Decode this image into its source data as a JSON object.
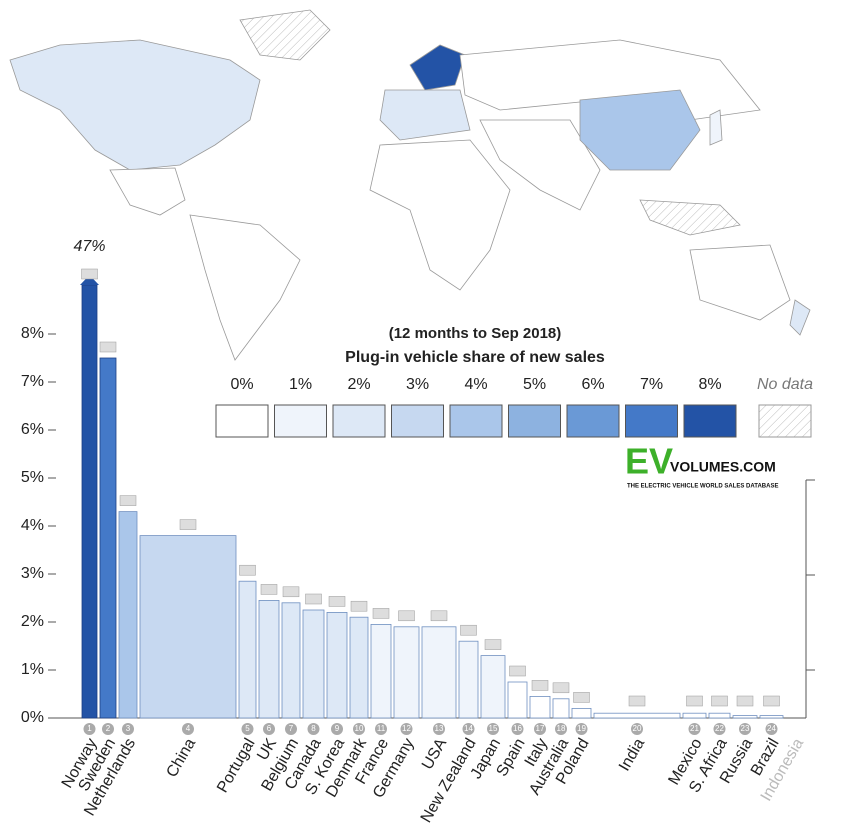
{
  "chart_data": {
    "type": "bar",
    "title": "Plug-in vehicle share of new sales",
    "subtitle": "(12 months to Sep 2018)",
    "categories": [
      "Norway",
      "Sweden",
      "Netherlands",
      "China",
      "Portugal",
      "UK",
      "Belgium",
      "Canada",
      "S. Korea",
      "Denmark",
      "France",
      "Germany",
      "USA",
      "New Zealand",
      "Japan",
      "Spain",
      "Italy",
      "Australia",
      "Poland",
      "India",
      "Mexico",
      "S. Africa",
      "Russia",
      "Brazil",
      "Indonesia"
    ],
    "numbers": [
      1,
      2,
      3,
      4,
      5,
      6,
      7,
      8,
      9,
      10,
      11,
      12,
      13,
      14,
      15,
      16,
      17,
      18,
      19,
      20,
      21,
      22,
      23,
      24,
      null
    ],
    "values": [
      47,
      7.5,
      4.3,
      3.8,
      2.85,
      2.45,
      2.4,
      2.25,
      2.2,
      2.1,
      1.95,
      1.9,
      1.9,
      1.6,
      1.3,
      0.75,
      0.45,
      0.4,
      0.2,
      0.1,
      0.1,
      0.1,
      0.05,
      0.05,
      0
    ],
    "value_labels": [
      "47%",
      null,
      null,
      null,
      null,
      null,
      null,
      null,
      null,
      null,
      null,
      null,
      null,
      null,
      null,
      null,
      null,
      null,
      null,
      null,
      null,
      null,
      null,
      null,
      null
    ],
    "widths": [
      15,
      16,
      18,
      96,
      17,
      20,
      18,
      21,
      20,
      18,
      20,
      25,
      34,
      19,
      24,
      19,
      20,
      16,
      19,
      86,
      23,
      21,
      24,
      23,
      20
    ],
    "ylim": [
      0,
      8
    ],
    "yticks": [
      {
        "value": 0,
        "label": "0%"
      },
      {
        "value": 1,
        "label": "1%"
      },
      {
        "value": 2,
        "label": "2%"
      },
      {
        "value": 3,
        "label": "3%"
      },
      {
        "value": 4,
        "label": "4%"
      },
      {
        "value": 5,
        "label": "5%"
      },
      {
        "value": 6,
        "label": "6%"
      },
      {
        "value": 7,
        "label": "7%"
      },
      {
        "value": 8,
        "label": "8%"
      }
    ],
    "legend": [
      {
        "label": "0%",
        "color": "#ffffff"
      },
      {
        "label": "1%",
        "color": "#eff4fb"
      },
      {
        "label": "2%",
        "color": "#dde8f6"
      },
      {
        "label": "3%",
        "color": "#c6d8f0"
      },
      {
        "label": "4%",
        "color": "#aac6ea"
      },
      {
        "label": "5%",
        "color": "#8db2e0"
      },
      {
        "label": "6%",
        "color": "#6a99d6"
      },
      {
        "label": "7%",
        "color": "#4479c8"
      },
      {
        "label": "8%",
        "color": "#2353a6"
      }
    ],
    "no_data_label": "No data",
    "logo": {
      "ev": "EV",
      "name": "VOLUMES.COM",
      "tagline": "THE ELECTRIC VEHICLE WORLD SALES DATABASE"
    }
  }
}
